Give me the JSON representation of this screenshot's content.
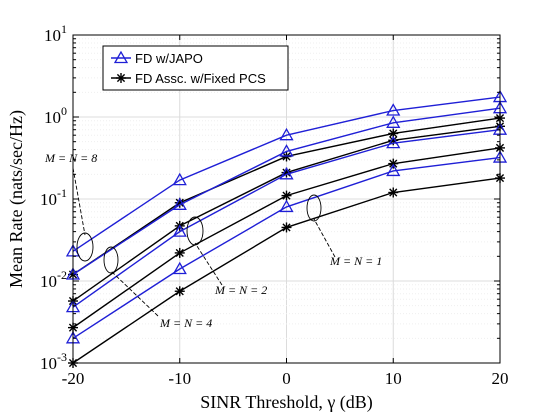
{
  "chart_data": {
    "type": "line",
    "title": "",
    "xlabel": "SINR Threshold, γ (dB)",
    "ylabel": "Mean Rate (nats/sec/Hz)",
    "yscale": "log",
    "xlim": [
      -20,
      20
    ],
    "ylim": [
      0.001,
      10
    ],
    "grid": true,
    "legend_position": "top-left",
    "x": [
      -20,
      -10,
      0,
      10,
      20
    ],
    "x_ticks": [
      "-20",
      "-10",
      "0",
      "10",
      "20"
    ],
    "y_ticks": [
      {
        "value": 0.001,
        "base": "10",
        "exp": "-3"
      },
      {
        "value": 0.01,
        "base": "10",
        "exp": "-2"
      },
      {
        "value": 0.1,
        "base": "10",
        "exp": "-1"
      },
      {
        "value": 1,
        "base": "10",
        "exp": "0"
      },
      {
        "value": 10,
        "base": "10",
        "exp": "1"
      }
    ],
    "legend": [
      {
        "label": "FD w/JAPO",
        "color": "#1f1fd6",
        "marker": "triangle"
      },
      {
        "label": "FD Assc. w/Fixed PCS",
        "color": "#000000",
        "marker": "asterisk"
      }
    ],
    "series": [
      {
        "group": "M = N = 8",
        "marker": "triangle",
        "color": "#1f1fd6",
        "values": [
          0.023,
          0.17,
          0.6,
          1.2,
          1.75
        ]
      },
      {
        "group": "M = N = 8",
        "marker": "asterisk",
        "color": "#000000",
        "values": [
          0.012,
          0.09,
          0.33,
          0.63,
          0.97
        ]
      },
      {
        "group": "M = N = 4",
        "marker": "triangle",
        "color": "#1f1fd6",
        "values": [
          0.012,
          0.085,
          0.38,
          0.85,
          1.28
        ]
      },
      {
        "group": "M = N = 4",
        "marker": "asterisk",
        "color": "#000000",
        "values": [
          0.0057,
          0.047,
          0.21,
          0.52,
          0.77
        ]
      },
      {
        "group": "M = N = 2",
        "marker": "triangle",
        "color": "#1f1fd6",
        "values": [
          0.0048,
          0.04,
          0.2,
          0.48,
          0.7
        ]
      },
      {
        "group": "M = N = 2",
        "marker": "asterisk",
        "color": "#000000",
        "values": [
          0.0027,
          0.022,
          0.11,
          0.27,
          0.42
        ]
      },
      {
        "group": "M = N = 1",
        "marker": "triangle",
        "color": "#1f1fd6",
        "values": [
          0.002,
          0.014,
          0.08,
          0.22,
          0.32
        ]
      },
      {
        "group": "M = N = 1",
        "marker": "asterisk",
        "color": "#000000",
        "values": [
          0.001,
          0.0075,
          0.045,
          0.12,
          0.18
        ]
      }
    ],
    "annotations": [
      {
        "label": "M = N = 8",
        "target_x": -19,
        "target_y": 0.017
      },
      {
        "label": "M = N = 4",
        "target_x": -17.5,
        "target_y": 0.0085
      },
      {
        "label": "M = N = 2",
        "target_x": -9,
        "target_y": 0.034
      },
      {
        "label": "M = N = 1",
        "target_x": 2.5,
        "target_y": 0.075
      }
    ]
  }
}
